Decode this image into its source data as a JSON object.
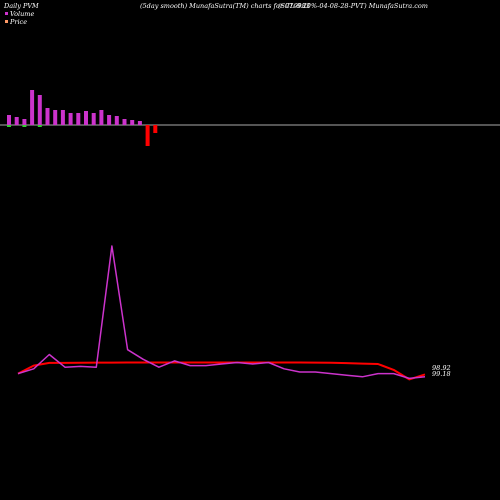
{
  "header": {
    "left": "Daily PVM",
    "middle": "(5day smooth) MunafaSutra(TM) charts for 976983",
    "right": "(SCL-9.20%-04-08-28-PVT) MunafaSutra.com"
  },
  "legend": [
    {
      "label": "Volume",
      "color": "#cc33cc"
    },
    {
      "label": "Price",
      "color": "#ff9966"
    }
  ],
  "chart_data": {
    "type": "bar+line",
    "volume": {
      "values": [
        10,
        8,
        6,
        35,
        30,
        17,
        15,
        15,
        12,
        12,
        14,
        12,
        15,
        10,
        9,
        6,
        5,
        4,
        -21,
        -8
      ],
      "up_color": "#cc33cc",
      "down_color": "#ff0000",
      "baseline_color": "#33cc33",
      "baseline_marks": [
        0,
        2,
        4
      ]
    },
    "series": [
      {
        "name": "Price",
        "color": "#ff0000",
        "values": [
          1,
          0.95,
          0.933,
          0.933,
          0.932,
          0.931,
          0.931,
          0.93,
          0.93,
          0.93,
          0.93,
          0.93,
          0.93,
          0.93,
          0.93,
          0.93,
          0.93,
          0.93,
          0.93,
          0.931,
          0.932,
          0.934,
          0.937,
          0.94,
          0.977,
          1.036,
          1.005
        ]
      },
      {
        "name": "Volume",
        "color": "#cc33cc",
        "values": [
          1,
          0.97,
          0.88,
          0.96,
          0.955,
          0.96,
          0.2,
          0.85,
          0.91,
          0.96,
          0.92,
          0.95,
          0.95,
          0.94,
          0.93,
          0.94,
          0.93,
          0.97,
          0.99,
          0.99,
          1.0,
          1.01,
          1.02,
          1.0,
          1.0,
          1.03,
          1.02
        ]
      }
    ],
    "last_label": "98.92",
    "last_label_2": "99.18"
  }
}
